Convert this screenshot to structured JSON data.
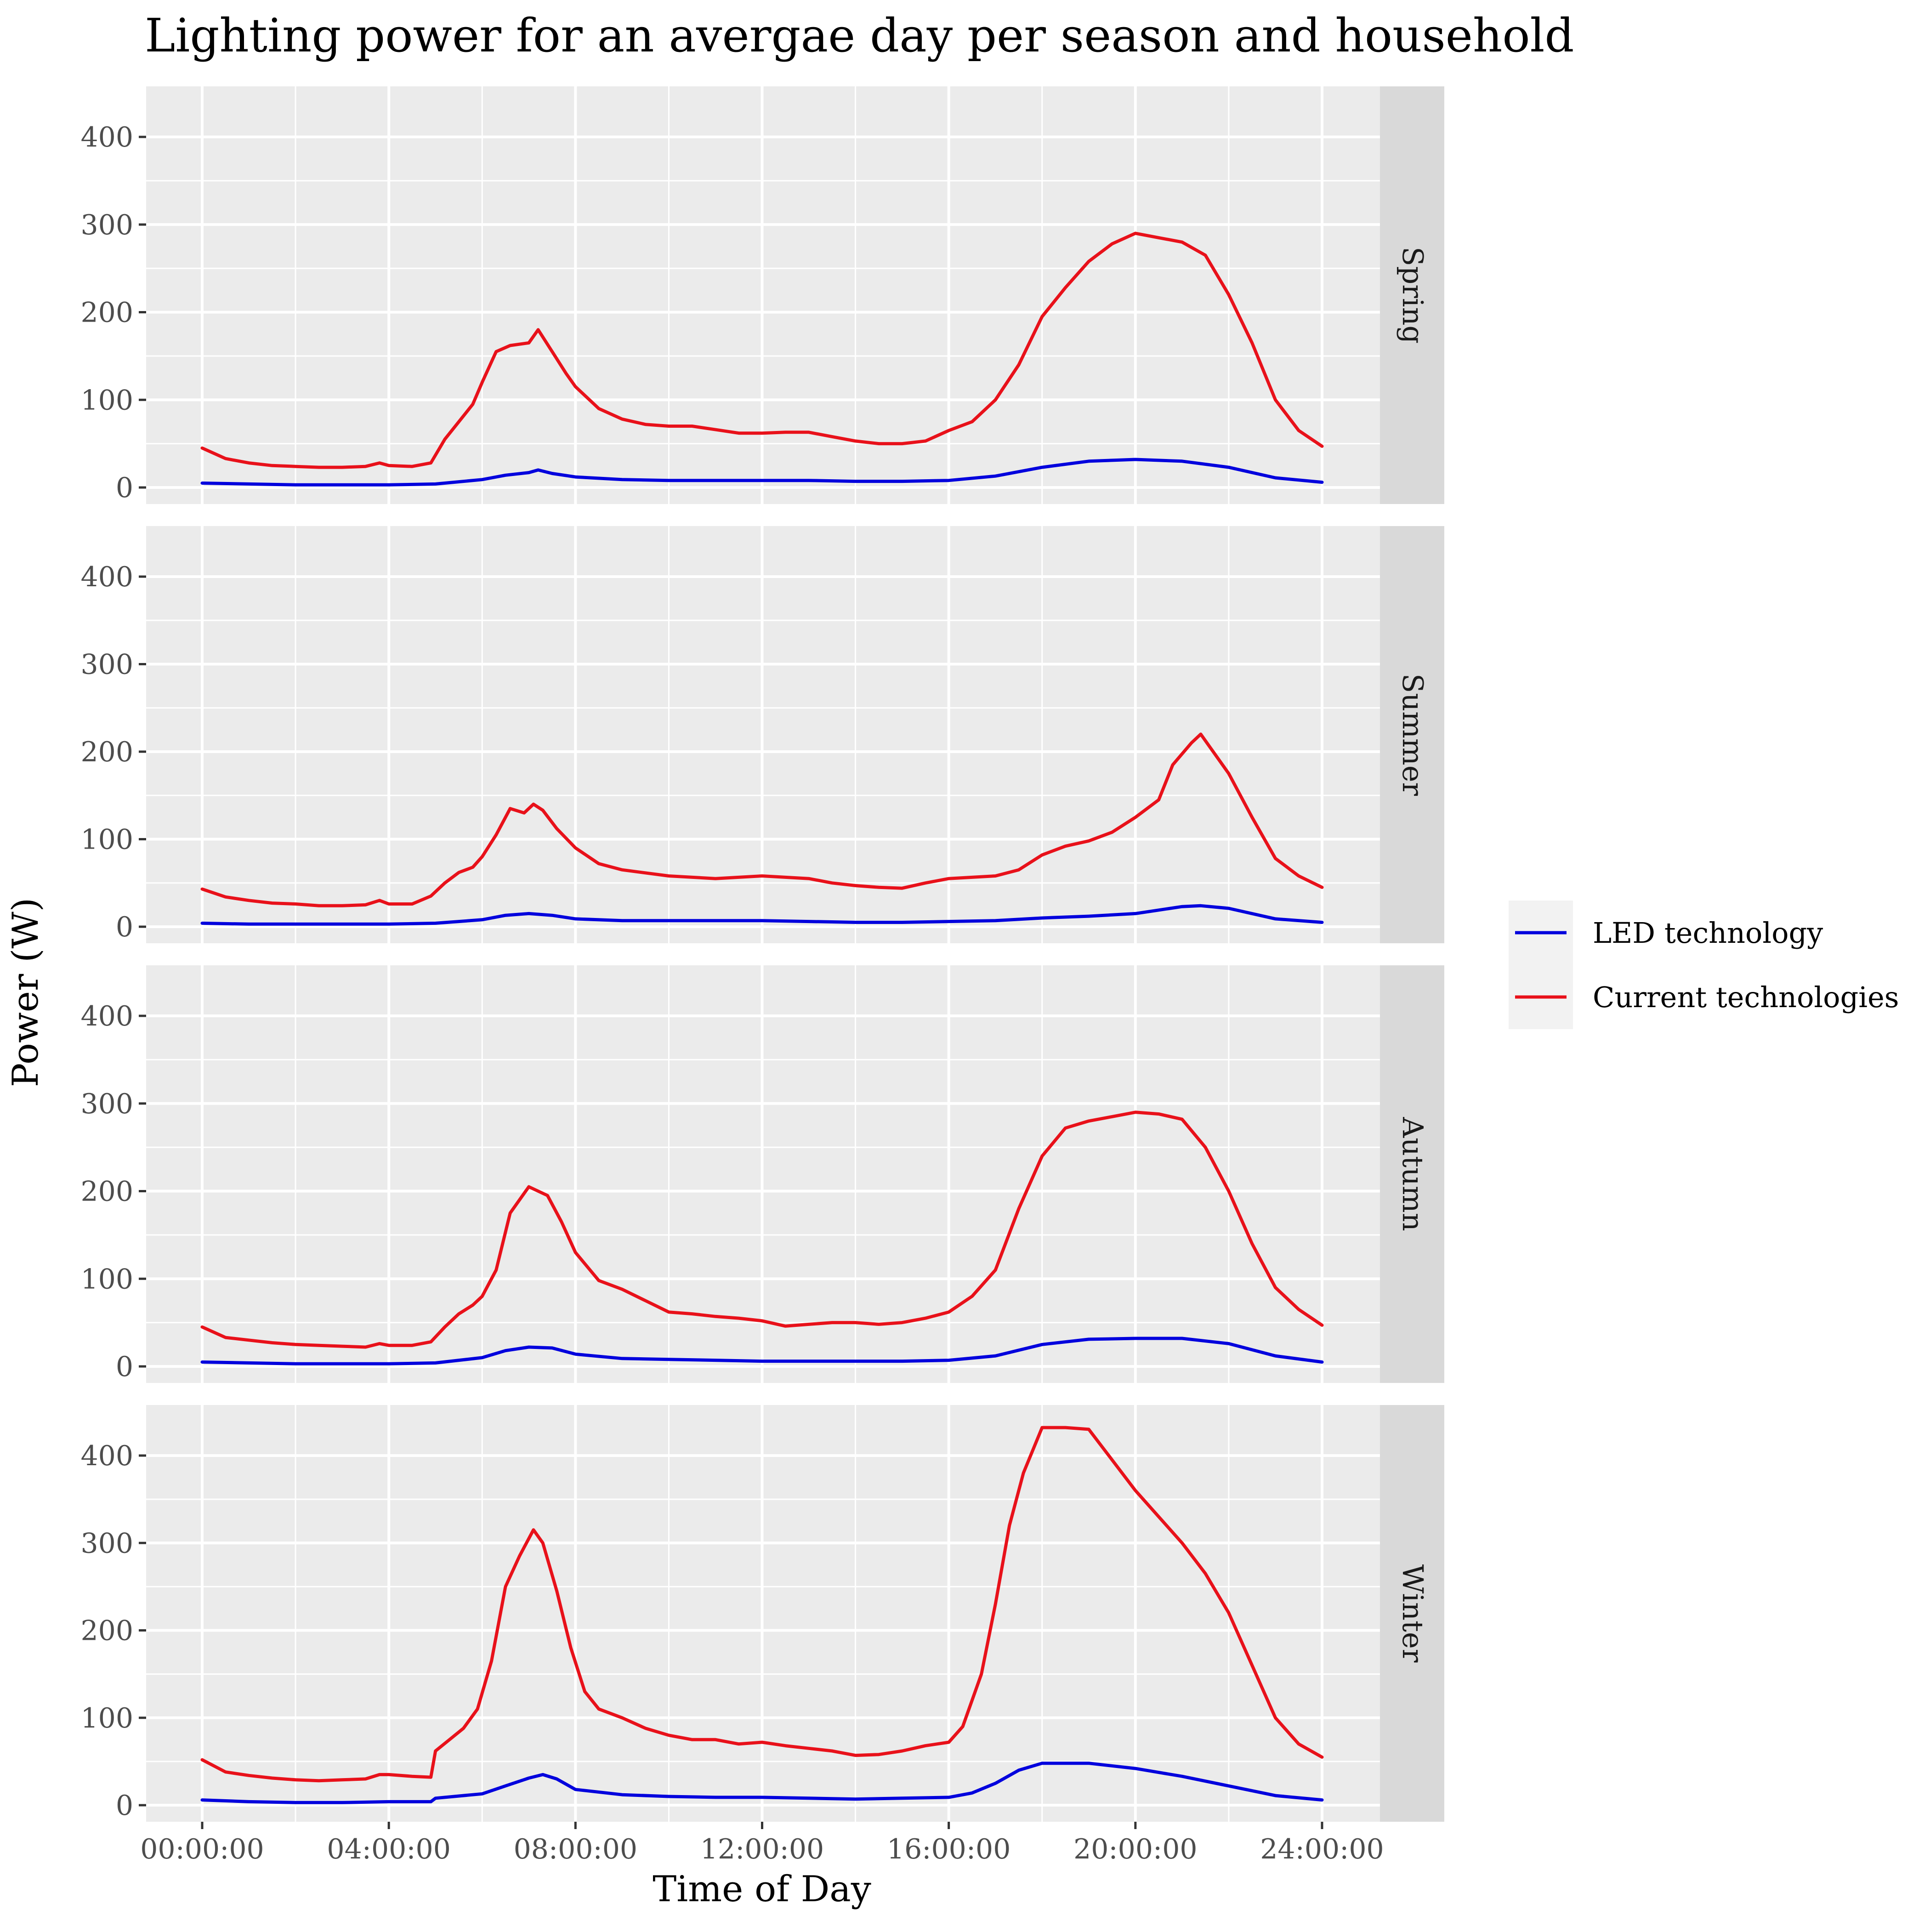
{
  "chart_data": {
    "type": "line",
    "title": "Lighting power for an avergae day per season and household",
    "xlabel": "Time of Day",
    "ylabel": "Power (W)",
    "x_ticks": [
      "00:00:00",
      "04:00:00",
      "08:00:00",
      "12:00:00",
      "16:00:00",
      "20:00:00",
      "24:00:00"
    ],
    "y_ticks": [
      "0",
      "100",
      "200",
      "300",
      "400"
    ],
    "xlim": [
      0,
      24
    ],
    "ylim": [
      0,
      450
    ],
    "x_unit": "hours",
    "grid": true,
    "legend_position": "right",
    "legend": [
      {
        "label": "LED technology",
        "color": "#0000dd"
      },
      {
        "label": "Current technologies",
        "color": "#e8111a"
      }
    ],
    "facets": [
      {
        "label": "Spring",
        "series": [
          {
            "name": "Current technologies",
            "color": "#e8111a",
            "x": [
              0,
              0.5,
              1,
              1.5,
              2,
              2.5,
              3,
              3.5,
              3.8,
              4,
              4.5,
              4.9,
              5.2,
              5.5,
              5.8,
              6,
              6.3,
              6.6,
              7,
              7.2,
              7.5,
              7.8,
              8,
              8.5,
              9,
              9.5,
              10,
              10.5,
              11,
              11.5,
              12,
              12.5,
              13,
              13.5,
              14,
              14.5,
              15,
              15.5,
              16,
              16.5,
              17,
              17.5,
              18,
              18.5,
              19,
              19.5,
              20,
              20.5,
              21,
              21.5,
              22,
              22.5,
              23,
              23.5,
              24
            ],
            "y": [
              45,
              33,
              28,
              25,
              24,
              23,
              23,
              24,
              28,
              25,
              24,
              28,
              55,
              75,
              95,
              120,
              155,
              162,
              165,
              180,
              155,
              130,
              115,
              90,
              78,
              72,
              70,
              70,
              66,
              62,
              62,
              63,
              63,
              58,
              53,
              50,
              50,
              53,
              65,
              75,
              100,
              140,
              195,
              228,
              258,
              278,
              290,
              285,
              280,
              265,
              220,
              165,
              100,
              65,
              47
            ]
          },
          {
            "name": "LED technology",
            "color": "#0000dd",
            "x": [
              0,
              1,
              2,
              3,
              4,
              5,
              6,
              6.5,
              7,
              7.2,
              7.5,
              8,
              9,
              10,
              11,
              12,
              13,
              14,
              15,
              16,
              17,
              18,
              19,
              20,
              21,
              22,
              23,
              24
            ],
            "y": [
              5,
              4,
              3,
              3,
              3,
              4,
              9,
              14,
              17,
              20,
              16,
              12,
              9,
              8,
              8,
              8,
              8,
              7,
              7,
              8,
              13,
              23,
              30,
              32,
              30,
              23,
              11,
              6
            ]
          }
        ]
      },
      {
        "label": "Summer",
        "series": [
          {
            "name": "Current technologies",
            "color": "#e8111a",
            "x": [
              0,
              0.5,
              1,
              1.5,
              2,
              2.5,
              3,
              3.5,
              3.8,
              4,
              4.5,
              4.9,
              5.2,
              5.5,
              5.8,
              6,
              6.3,
              6.6,
              6.9,
              7.1,
              7.3,
              7.6,
              8,
              8.5,
              9,
              10,
              11,
              12,
              13,
              13.5,
              14,
              14.5,
              15,
              15.5,
              16,
              17,
              17.5,
              18,
              18.5,
              19,
              19.5,
              20,
              20.5,
              20.8,
              21.2,
              21.4,
              21.6,
              22,
              22.5,
              23,
              23.5,
              24
            ],
            "y": [
              43,
              34,
              30,
              27,
              26,
              24,
              24,
              25,
              30,
              26,
              26,
              35,
              50,
              62,
              68,
              80,
              105,
              135,
              130,
              140,
              133,
              112,
              90,
              72,
              65,
              58,
              55,
              58,
              55,
              50,
              47,
              45,
              44,
              50,
              55,
              58,
              65,
              82,
              92,
              98,
              108,
              125,
              145,
              185,
              210,
              220,
              205,
              175,
              125,
              78,
              58,
              45
            ]
          },
          {
            "name": "LED technology",
            "color": "#0000dd",
            "x": [
              0,
              1,
              2,
              3,
              4,
              5,
              6,
              6.5,
              7,
              7.5,
              8,
              9,
              10,
              11,
              12,
              13,
              14,
              15,
              16,
              17,
              18,
              19,
              20,
              20.5,
              21,
              21.4,
              22,
              23,
              24
            ],
            "y": [
              4,
              3,
              3,
              3,
              3,
              4,
              8,
              13,
              15,
              13,
              9,
              7,
              7,
              7,
              7,
              6,
              5,
              5,
              6,
              7,
              10,
              12,
              15,
              19,
              23,
              24,
              21,
              9,
              5
            ]
          }
        ]
      },
      {
        "label": "Autumn",
        "series": [
          {
            "name": "Current technologies",
            "color": "#e8111a",
            "x": [
              0,
              0.5,
              1,
              1.5,
              2,
              2.5,
              3,
              3.5,
              3.8,
              4,
              4.5,
              4.9,
              5.2,
              5.5,
              5.8,
              6,
              6.3,
              6.6,
              7,
              7.4,
              7.7,
              8,
              8.5,
              9,
              9.5,
              10,
              10.5,
              11,
              11.5,
              12,
              12.5,
              13,
              13.5,
              14,
              14.5,
              15,
              15.5,
              16,
              16.5,
              17,
              17.5,
              18,
              18.5,
              19,
              19.5,
              20,
              20.5,
              21,
              21.5,
              22,
              22.5,
              23,
              23.5,
              24
            ],
            "y": [
              45,
              33,
              30,
              27,
              25,
              24,
              23,
              22,
              26,
              24,
              24,
              28,
              45,
              60,
              70,
              80,
              110,
              175,
              205,
              195,
              165,
              130,
              98,
              88,
              75,
              62,
              60,
              57,
              55,
              52,
              46,
              48,
              50,
              50,
              48,
              50,
              55,
              62,
              80,
              110,
              180,
              240,
              272,
              280,
              285,
              290,
              288,
              282,
              250,
              200,
              140,
              90,
              65,
              47
            ]
          },
          {
            "name": "LED technology",
            "color": "#0000dd",
            "x": [
              0,
              1,
              2,
              3,
              4,
              5,
              6,
              6.5,
              7,
              7.5,
              8,
              9,
              10,
              11,
              12,
              13,
              14,
              15,
              16,
              17,
              18,
              19,
              20,
              21,
              22,
              23,
              24
            ],
            "y": [
              5,
              4,
              3,
              3,
              3,
              4,
              10,
              18,
              22,
              21,
              14,
              9,
              8,
              7,
              6,
              6,
              6,
              6,
              7,
              12,
              25,
              31,
              32,
              32,
              26,
              12,
              5
            ]
          }
        ]
      },
      {
        "label": "Winter",
        "series": [
          {
            "name": "Current technologies",
            "color": "#e8111a",
            "x": [
              0,
              0.5,
              1,
              1.5,
              2,
              2.5,
              3,
              3.5,
              3.8,
              4,
              4.5,
              4.9,
              5,
              5.3,
              5.6,
              5.9,
              6.2,
              6.5,
              6.8,
              7.1,
              7.3,
              7.6,
              7.9,
              8.2,
              8.5,
              9,
              9.5,
              10,
              10.5,
              11,
              11.5,
              12,
              12.5,
              13,
              13.5,
              14,
              14.5,
              15,
              15.5,
              16,
              16.3,
              16.7,
              17,
              17.3,
              17.6,
              18,
              18.5,
              19,
              19.5,
              20,
              20.5,
              21,
              21.5,
              22,
              22.5,
              23,
              23.5,
              24
            ],
            "y": [
              52,
              38,
              34,
              31,
              29,
              28,
              29,
              30,
              35,
              35,
              33,
              32,
              62,
              75,
              88,
              110,
              165,
              250,
              285,
              315,
              300,
              245,
              180,
              130,
              110,
              100,
              88,
              80,
              75,
              75,
              70,
              72,
              68,
              65,
              62,
              57,
              58,
              62,
              68,
              72,
              90,
              150,
              230,
              320,
              380,
              432,
              432,
              430,
              395,
              360,
              330,
              300,
              265,
              220,
              160,
              100,
              70,
              55
            ]
          },
          {
            "name": "LED technology",
            "color": "#0000dd",
            "x": [
              0,
              1,
              2,
              3,
              4,
              4.9,
              5,
              6,
              6.5,
              7,
              7.3,
              7.6,
              8,
              9,
              10,
              11,
              12,
              13,
              14,
              15,
              16,
              16.5,
              17,
              17.5,
              18,
              19,
              20,
              21,
              22,
              23,
              24
            ],
            "y": [
              6,
              4,
              3,
              3,
              4,
              4,
              8,
              13,
              22,
              31,
              35,
              30,
              18,
              12,
              10,
              9,
              9,
              8,
              7,
              8,
              9,
              14,
              25,
              40,
              48,
              48,
              42,
              33,
              22,
              11,
              6
            ]
          }
        ]
      }
    ]
  }
}
